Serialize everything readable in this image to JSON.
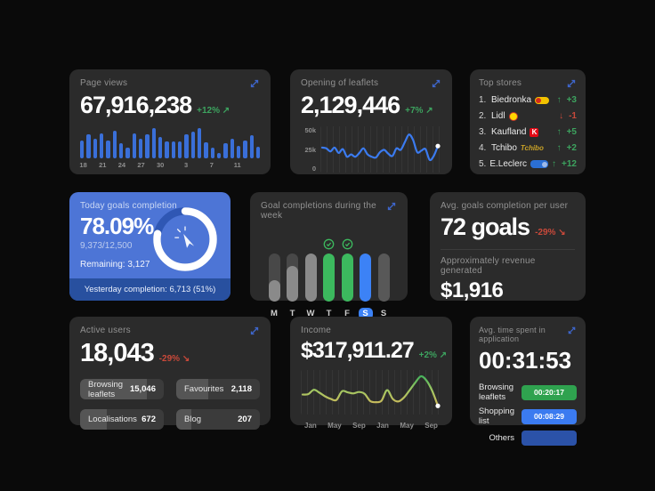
{
  "colors": {
    "background": "#0a0a0a",
    "card": "#2b2b2b",
    "accent_blue": "#3c82f6",
    "bar_blue": "#3a6fd8",
    "green": "#3da35f",
    "red": "#c9493a",
    "blue_card": "#4d75d6",
    "blue_card_footer": "#28509f",
    "badge_green": "#2fa24f",
    "badge_blue": "#3b7bf0",
    "badge_darkblue": "#2b52a8"
  },
  "icons": {
    "up_right": "↗",
    "down_right": "↘",
    "up": "↑",
    "down": "↓"
  },
  "page_views": {
    "title": "Page views",
    "value": "67,916,238",
    "delta": "+12%",
    "delta_dir": "up",
    "chart_data": {
      "type": "bar",
      "values": [
        55,
        75,
        62,
        78,
        55,
        86,
        48,
        34,
        78,
        62,
        76,
        95,
        68,
        52,
        54,
        52,
        76,
        82,
        95,
        50,
        34,
        18,
        46,
        62,
        40,
        56,
        72,
        36
      ],
      "x_labels": [
        "18",
        "21",
        "24",
        "27",
        "30",
        "3",
        "7",
        "11"
      ],
      "label_indices": [
        0,
        3,
        6,
        9,
        12,
        16,
        20,
        24
      ]
    }
  },
  "leaflets": {
    "title": "Opening of leaflets",
    "value": "2,129,446",
    "delta": "+7%",
    "delta_dir": "up",
    "chart_data": {
      "type": "line",
      "y_labels": [
        "50k",
        "25k",
        "0"
      ],
      "ymax": 50,
      "values": [
        28,
        27,
        23,
        28,
        21,
        26,
        16,
        19,
        16,
        21,
        27,
        19,
        16,
        15,
        22,
        25,
        20,
        17,
        27,
        25,
        35,
        45,
        38,
        22,
        24,
        26,
        12,
        17,
        30
      ]
    }
  },
  "top_stores": {
    "title": "Top stores",
    "items": [
      {
        "rank": "1.",
        "name": "Biedronka",
        "change": "+3",
        "dir": "up",
        "logo": "biedronka"
      },
      {
        "rank": "2.",
        "name": "Lidl",
        "change": "-1",
        "dir": "down",
        "logo": "lidl"
      },
      {
        "rank": "3.",
        "name": "Kaufland",
        "change": "+5",
        "dir": "up",
        "logo": "kaufland"
      },
      {
        "rank": "4.",
        "name": "Tchibo",
        "change": "+2",
        "dir": "up",
        "logo": "tchibo"
      },
      {
        "rank": "5.",
        "name": "E.Leclerc",
        "change": "+12",
        "dir": "up",
        "logo": "eleclerc"
      }
    ]
  },
  "today_goals": {
    "title": "Today goals completion",
    "percent": "78.09%",
    "percent_value": 78.09,
    "fraction": "9,373/12,500",
    "remaining": "Remaining: 3,127",
    "footer": "Yesterday completion: 6,713 (51%)"
  },
  "week_goals": {
    "title": "Goal completions during the week",
    "days": [
      {
        "label": "M",
        "fill": 45,
        "color": "gray",
        "checked": false,
        "active": false
      },
      {
        "label": "T",
        "fill": 75,
        "color": "gray",
        "checked": false,
        "active": false
      },
      {
        "label": "W",
        "fill": 100,
        "color": "gray",
        "checked": false,
        "active": false
      },
      {
        "label": "T",
        "fill": 100,
        "color": "green",
        "checked": true,
        "active": false
      },
      {
        "label": "F",
        "fill": 100,
        "color": "green",
        "checked": true,
        "active": false
      },
      {
        "label": "S",
        "fill": 100,
        "color": "blue",
        "checked": false,
        "active": true
      },
      {
        "label": "S",
        "fill": 100,
        "color": "dim",
        "checked": false,
        "active": false
      }
    ]
  },
  "avg_goals": {
    "title": "Avg. goals completion per user",
    "value": "72 goals",
    "delta": "-29%",
    "delta_dir": "down",
    "revenue_label": "Approximately revenue generated",
    "revenue_value": "$1,916"
  },
  "active_users": {
    "title": "Active users",
    "value": "18,043",
    "delta": "-29%",
    "delta_dir": "down",
    "chips": [
      {
        "label": "Browsing leaflets",
        "value": "15,046",
        "fill": 80
      },
      {
        "label": "Favourites",
        "value": "2,118",
        "fill": 38
      },
      {
        "label": "Localisations",
        "value": "672",
        "fill": 32
      },
      {
        "label": "Blog",
        "value": "207",
        "fill": 18
      }
    ]
  },
  "income": {
    "title": "Income",
    "value": "$317,911.27",
    "delta": "+2%",
    "delta_dir": "up",
    "chart_data": {
      "type": "line",
      "x_labels": [
        "Jan",
        "May",
        "Sep",
        "Jan",
        "May",
        "Sep"
      ],
      "ymax": 100,
      "values": [
        45,
        46,
        58,
        50,
        40,
        33,
        30,
        54,
        51,
        48,
        52,
        47,
        27,
        24,
        28,
        57,
        33,
        26,
        37,
        57,
        78,
        95,
        83,
        55,
        14
      ]
    }
  },
  "time_spent": {
    "title": "Avg. time spent in application",
    "value": "00:31:53",
    "rows": [
      {
        "label": "Browsing leaflets",
        "time": "00:20:17",
        "color": "green"
      },
      {
        "label": "Shopping list",
        "time": "00:08:29",
        "color": "blue"
      },
      {
        "label": "Others",
        "time": "",
        "color": "darkblue"
      }
    ]
  }
}
